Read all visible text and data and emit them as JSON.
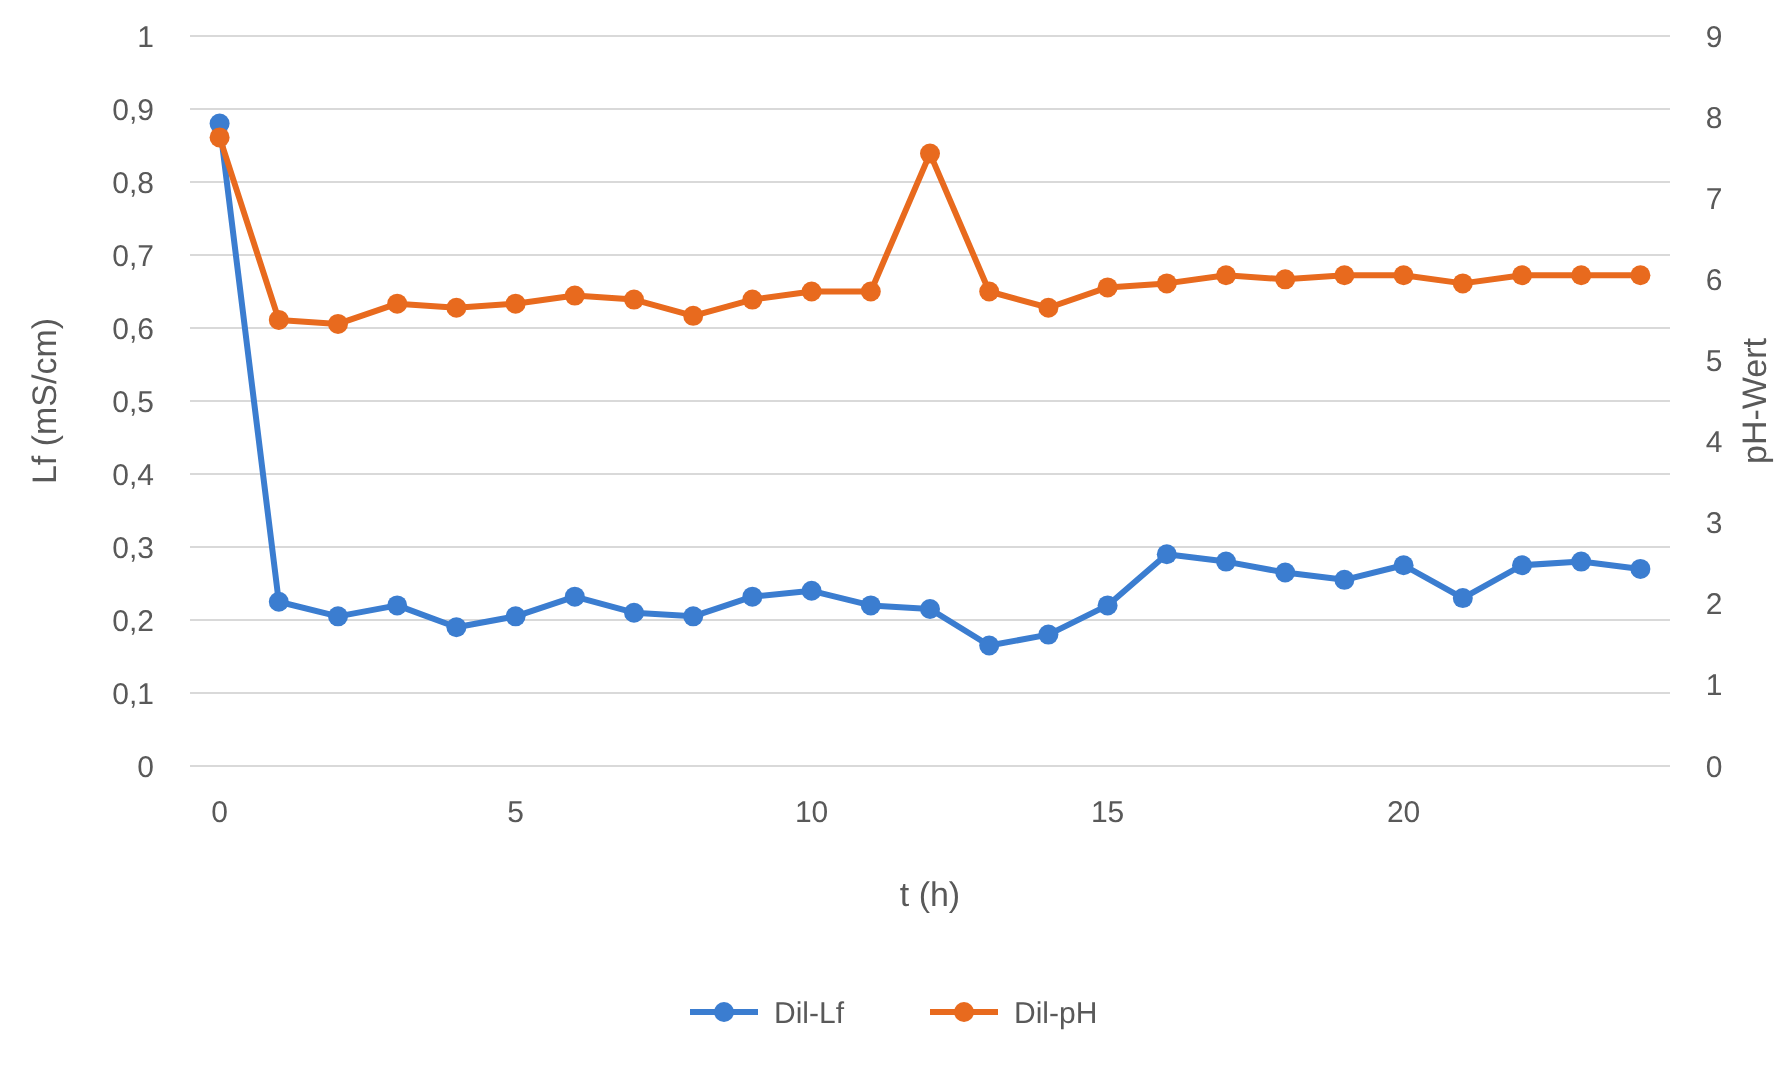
{
  "chart_data": {
    "type": "line",
    "xlabel": "t (h)",
    "ylabel": "Lf (mS/cm)",
    "y2label": "pH-Wert",
    "x": [
      0,
      1,
      2,
      3,
      4,
      5,
      6,
      7,
      8,
      9,
      10,
      11,
      12,
      13,
      14,
      15,
      16,
      17,
      18,
      19,
      20,
      21,
      22,
      23,
      24
    ],
    "series": [
      {
        "name": "Dil-Lf",
        "color": "#3b7dd0",
        "values": [
          0.88,
          0.225,
          0.205,
          0.22,
          0.19,
          0.205,
          0.232,
          0.21,
          0.205,
          0.232,
          0.24,
          0.22,
          0.215,
          0.165,
          0.18,
          0.22,
          0.29,
          0.28,
          0.265,
          0.255,
          0.275,
          0.23,
          0.275,
          0.28,
          0.27
        ]
      },
      {
        "name": "Dil-pH",
        "color": "#e86a1e",
        "axis": "y2",
        "values": [
          7.75,
          5.5,
          5.45,
          5.7,
          5.65,
          5.7,
          5.8,
          5.75,
          5.55,
          5.75,
          5.85,
          5.85,
          7.55,
          5.85,
          5.65,
          5.9,
          5.95,
          6.05,
          6.0,
          6.05,
          6.05,
          5.95,
          6.05,
          6.05,
          6.05
        ]
      }
    ],
    "xlim": [
      -0.5,
      24.5
    ],
    "xticks": [
      0,
      5,
      10,
      15,
      20
    ],
    "ylim": [
      0,
      1
    ],
    "yticks": [
      0,
      {
        "value": 0.1,
        "label": "0,1"
      },
      {
        "value": 0.2,
        "label": "0,2"
      },
      {
        "value": 0.3,
        "label": "0,3"
      },
      {
        "value": 0.4,
        "label": "0,4"
      },
      {
        "value": 0.5,
        "label": "0,5"
      },
      {
        "value": 0.6,
        "label": "0,6"
      },
      {
        "value": 0.7,
        "label": "0,7"
      },
      {
        "value": 0.8,
        "label": "0,8"
      },
      {
        "value": 0.9,
        "label": "0,9"
      },
      1
    ],
    "y2lim": [
      0,
      9
    ],
    "y2ticks": [
      0,
      1,
      2,
      3,
      4,
      5,
      6,
      7,
      8,
      9
    ],
    "grid": "y",
    "legend": "bottom",
    "marker": "circle",
    "line_style": "solid"
  }
}
